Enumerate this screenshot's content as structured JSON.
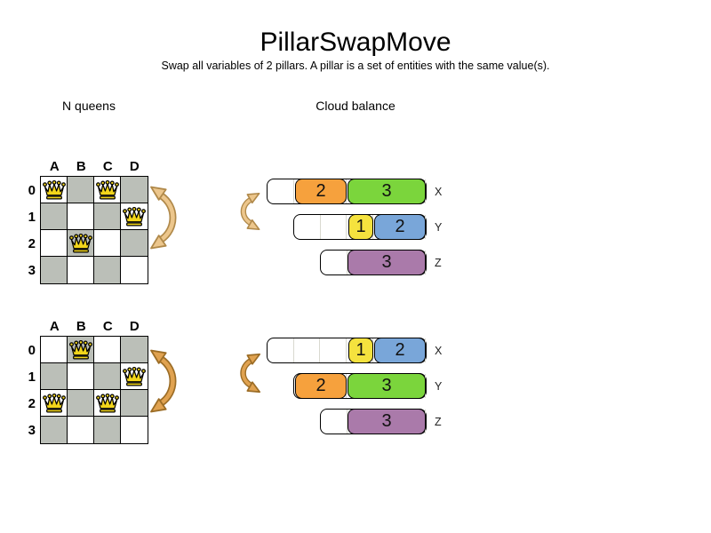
{
  "title": "PillarSwapMove",
  "subtitle": "Swap all variables of 2 pillars. A pillar is a set of entities with the same value(s).",
  "sections": {
    "left": "N queens",
    "right": "Cloud balance"
  },
  "colors": {
    "board-dark": "#bbbfb8",
    "board-light": "#ffffff",
    "queen-gold": "#f2d51b",
    "arrow-light-fill": "#ecc68c",
    "arrow-light-stroke": "#b0894a",
    "arrow-dark-fill": "#e0a250",
    "arrow-dark-stroke": "#9c6d26",
    "process-orange": "#f6a13d",
    "process-green": "#7bd53c",
    "process-yellow": "#f5e23e",
    "process-blue": "#79a6d9",
    "process-purple": "#aa7aaa"
  },
  "boards": [
    {
      "state": "before",
      "columns": [
        "A",
        "B",
        "C",
        "D"
      ],
      "rows": [
        "0",
        "1",
        "2",
        "3"
      ],
      "queens": [
        {
          "col": "A",
          "row": "0"
        },
        {
          "col": "C",
          "row": "0"
        },
        {
          "col": "D",
          "row": "1"
        },
        {
          "col": "B",
          "row": "2"
        }
      ]
    },
    {
      "state": "after",
      "columns": [
        "A",
        "B",
        "C",
        "D"
      ],
      "rows": [
        "0",
        "1",
        "2",
        "3"
      ],
      "queens": [
        {
          "col": "B",
          "row": "0"
        },
        {
          "col": "D",
          "row": "1"
        },
        {
          "col": "A",
          "row": "2"
        },
        {
          "col": "C",
          "row": "2"
        }
      ]
    }
  ],
  "cloud": [
    {
      "state": "before",
      "computers": [
        {
          "label": "X",
          "capacity": 6,
          "processes": [
            {
              "value": "2",
              "cells": 2,
              "color": "orange"
            },
            {
              "value": "3",
              "cells": 3,
              "color": "green"
            }
          ]
        },
        {
          "label": "Y",
          "capacity": 5,
          "processes": [
            {
              "value": "1",
              "cells": 1,
              "color": "yellow"
            },
            {
              "value": "2",
              "cells": 2,
              "color": "blue"
            }
          ]
        },
        {
          "label": "Z",
          "capacity": 4,
          "processes": [
            {
              "value": "3",
              "cells": 3,
              "color": "purple"
            }
          ]
        }
      ]
    },
    {
      "state": "after",
      "computers": [
        {
          "label": "X",
          "capacity": 6,
          "processes": [
            {
              "value": "1",
              "cells": 1,
              "color": "yellow"
            },
            {
              "value": "2",
              "cells": 2,
              "color": "blue"
            }
          ]
        },
        {
          "label": "Y",
          "capacity": 5,
          "processes": [
            {
              "value": "2",
              "cells": 2,
              "color": "orange"
            },
            {
              "value": "3",
              "cells": 3,
              "color": "green"
            }
          ]
        },
        {
          "label": "Z",
          "capacity": 4,
          "processes": [
            {
              "value": "3",
              "cells": 3,
              "color": "purple"
            }
          ]
        }
      ]
    }
  ]
}
